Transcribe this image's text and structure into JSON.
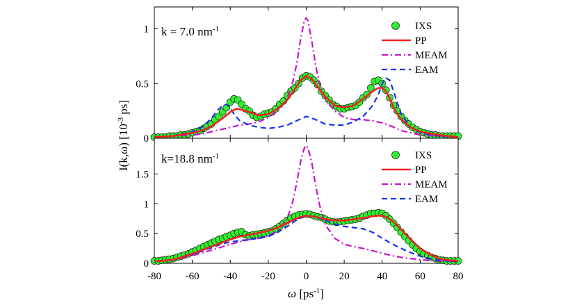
{
  "chart_data": [
    {
      "type": "line",
      "panel_label": "k = 7.0 nm",
      "panel_label_sup": "-1",
      "ylim": [
        0,
        1.2
      ],
      "yticks": [
        "0",
        "0.5",
        "1"
      ],
      "legend_position": "top-right",
      "legend": [
        "IXS",
        "PP",
        "MEAM",
        "EAM"
      ],
      "series": [
        {
          "name": "IXS",
          "style": "markers",
          "color": "#33ee33",
          "x": [
            -80,
            -78,
            -76,
            -74,
            -72,
            -70,
            -68,
            -66,
            -64,
            -62,
            -60,
            -58,
            -56,
            -54,
            -52,
            -50,
            -48,
            -46,
            -44,
            -42,
            -40,
            -38,
            -36,
            -34,
            -32,
            -30,
            -28,
            -26,
            -24,
            -22,
            -20,
            -18,
            -16,
            -14,
            -12,
            -10,
            -8,
            -6,
            -4,
            -2,
            0,
            2,
            4,
            6,
            8,
            10,
            12,
            14,
            16,
            18,
            20,
            22,
            24,
            26,
            28,
            30,
            32,
            34,
            36,
            38,
            40,
            42,
            44,
            46,
            48,
            50,
            52,
            54,
            56,
            58,
            60,
            62,
            64,
            66,
            68,
            70,
            72,
            74,
            76,
            78,
            80
          ],
          "y": [
            0.01,
            0.01,
            0.01,
            0.01,
            0.02,
            0.02,
            0.02,
            0.03,
            0.03,
            0.04,
            0.05,
            0.06,
            0.07,
            0.09,
            0.11,
            0.13,
            0.17,
            0.2,
            0.24,
            0.28,
            0.33,
            0.36,
            0.35,
            0.31,
            0.27,
            0.25,
            0.21,
            0.19,
            0.2,
            0.22,
            0.23,
            0.24,
            0.27,
            0.31,
            0.34,
            0.39,
            0.43,
            0.46,
            0.5,
            0.55,
            0.57,
            0.56,
            0.53,
            0.49,
            0.43,
            0.39,
            0.35,
            0.31,
            0.29,
            0.27,
            0.27,
            0.28,
            0.29,
            0.3,
            0.33,
            0.37,
            0.4,
            0.46,
            0.52,
            0.53,
            0.5,
            0.44,
            0.37,
            0.3,
            0.25,
            0.2,
            0.16,
            0.13,
            0.1,
            0.08,
            0.06,
            0.05,
            0.04,
            0.03,
            0.03,
            0.02,
            0.02,
            0.02,
            0.02,
            0.02,
            0.02
          ]
        },
        {
          "name": "PP",
          "style": "solid",
          "color": "#ee2222",
          "x": [
            -80,
            -70,
            -60,
            -55,
            -50,
            -45,
            -42,
            -40,
            -38,
            -36,
            -34,
            -30,
            -25,
            -20,
            -15,
            -10,
            -6,
            -3,
            0,
            3,
            6,
            10,
            15,
            20,
            25,
            30,
            35,
            38,
            40,
            42,
            44,
            46,
            50,
            55,
            60,
            70,
            80
          ],
          "y": [
            0.01,
            0.02,
            0.05,
            0.07,
            0.11,
            0.17,
            0.21,
            0.24,
            0.26,
            0.27,
            0.26,
            0.24,
            0.21,
            0.22,
            0.27,
            0.35,
            0.45,
            0.53,
            0.57,
            0.54,
            0.47,
            0.38,
            0.3,
            0.28,
            0.3,
            0.36,
            0.43,
            0.46,
            0.46,
            0.43,
            0.36,
            0.28,
            0.17,
            0.1,
            0.06,
            0.03,
            0.01
          ]
        },
        {
          "name": "MEAM",
          "style": "dashdot",
          "color": "#cc11cc",
          "x": [
            -80,
            -70,
            -60,
            -55,
            -50,
            -45,
            -40,
            -35,
            -30,
            -25,
            -20,
            -15,
            -10,
            -7,
            -5,
            -3,
            -1,
            0,
            1,
            3,
            5,
            7,
            10,
            15,
            20,
            25,
            30,
            35,
            40,
            45,
            50,
            55,
            60,
            70,
            80
          ],
          "y": [
            0.01,
            0.02,
            0.03,
            0.04,
            0.06,
            0.08,
            0.1,
            0.12,
            0.13,
            0.15,
            0.19,
            0.25,
            0.37,
            0.52,
            0.68,
            0.9,
            1.08,
            1.1,
            1.07,
            0.88,
            0.66,
            0.5,
            0.36,
            0.25,
            0.19,
            0.17,
            0.17,
            0.16,
            0.14,
            0.11,
            0.07,
            0.05,
            0.03,
            0.02,
            0.01
          ]
        },
        {
          "name": "EAM",
          "style": "dashed",
          "color": "#1133ee",
          "x": [
            -80,
            -70,
            -60,
            -55,
            -50,
            -47,
            -44,
            -42,
            -40,
            -38,
            -35,
            -30,
            -25,
            -20,
            -15,
            -10,
            -5,
            0,
            5,
            10,
            15,
            20,
            25,
            30,
            35,
            38,
            40,
            42,
            44,
            46,
            48,
            50,
            55,
            60,
            70,
            80
          ],
          "y": [
            0.01,
            0.02,
            0.06,
            0.1,
            0.18,
            0.25,
            0.3,
            0.31,
            0.28,
            0.22,
            0.16,
            0.12,
            0.1,
            0.09,
            0.1,
            0.12,
            0.16,
            0.2,
            0.17,
            0.13,
            0.12,
            0.12,
            0.15,
            0.2,
            0.3,
            0.4,
            0.5,
            0.55,
            0.53,
            0.43,
            0.32,
            0.22,
            0.1,
            0.05,
            0.02,
            0.01
          ]
        }
      ]
    },
    {
      "type": "line",
      "panel_label": "k=18.8 nm",
      "panel_label_sup": "-1",
      "ylim": [
        0,
        2.1
      ],
      "yticks": [
        "0",
        "0.5",
        "1",
        "1.5"
      ],
      "legend_position": "top-right",
      "legend": [
        "IXS",
        "PP",
        "MEAM",
        "EAM"
      ],
      "series": [
        {
          "name": "IXS",
          "style": "markers",
          "color": "#33ee33",
          "x": [
            -80,
            -78,
            -76,
            -74,
            -72,
            -70,
            -68,
            -66,
            -64,
            -62,
            -60,
            -58,
            -56,
            -54,
            -52,
            -50,
            -48,
            -46,
            -44,
            -42,
            -40,
            -38,
            -36,
            -34,
            -32,
            -30,
            -28,
            -26,
            -24,
            -22,
            -20,
            -18,
            -16,
            -14,
            -12,
            -10,
            -8,
            -6,
            -4,
            -2,
            0,
            2,
            4,
            6,
            8,
            10,
            12,
            14,
            16,
            18,
            20,
            22,
            24,
            26,
            28,
            30,
            32,
            34,
            36,
            38,
            40,
            42,
            44,
            46,
            48,
            50,
            52,
            54,
            56,
            58,
            60,
            62,
            64,
            66,
            68,
            70,
            72,
            74,
            76,
            78,
            80
          ],
          "y": [
            0.04,
            0.04,
            0.05,
            0.06,
            0.07,
            0.08,
            0.1,
            0.12,
            0.14,
            0.16,
            0.19,
            0.22,
            0.25,
            0.28,
            0.31,
            0.34,
            0.37,
            0.4,
            0.42,
            0.45,
            0.47,
            0.5,
            0.52,
            0.53,
            0.48,
            0.46,
            0.48,
            0.49,
            0.5,
            0.51,
            0.53,
            0.54,
            0.58,
            0.62,
            0.67,
            0.72,
            0.76,
            0.79,
            0.81,
            0.82,
            0.83,
            0.82,
            0.8,
            0.78,
            0.77,
            0.74,
            0.71,
            0.7,
            0.69,
            0.7,
            0.71,
            0.72,
            0.73,
            0.74,
            0.76,
            0.79,
            0.81,
            0.84,
            0.84,
            0.85,
            0.84,
            0.8,
            0.74,
            0.67,
            0.6,
            0.52,
            0.45,
            0.38,
            0.31,
            0.25,
            0.2,
            0.16,
            0.13,
            0.1,
            0.08,
            0.06,
            0.05,
            0.04,
            0.04,
            0.04,
            0.04
          ]
        },
        {
          "name": "PP",
          "style": "solid",
          "color": "#ee2222",
          "x": [
            -80,
            -70,
            -60,
            -50,
            -45,
            -40,
            -35,
            -30,
            -25,
            -20,
            -15,
            -10,
            -5,
            0,
            5,
            10,
            15,
            20,
            25,
            30,
            35,
            38,
            40,
            42,
            45,
            50,
            55,
            60,
            65,
            70,
            75,
            80
          ],
          "y": [
            0.03,
            0.06,
            0.16,
            0.28,
            0.34,
            0.4,
            0.45,
            0.48,
            0.51,
            0.55,
            0.6,
            0.68,
            0.76,
            0.8,
            0.78,
            0.74,
            0.72,
            0.72,
            0.74,
            0.76,
            0.79,
            0.8,
            0.8,
            0.78,
            0.72,
            0.57,
            0.4,
            0.25,
            0.15,
            0.08,
            0.05,
            0.04
          ]
        },
        {
          "name": "MEAM",
          "style": "dashdot",
          "color": "#cc11cc",
          "x": [
            -80,
            -70,
            -60,
            -50,
            -45,
            -40,
            -35,
            -30,
            -25,
            -20,
            -15,
            -10,
            -7,
            -5,
            -3,
            -1,
            0,
            1,
            3,
            5,
            7,
            10,
            15,
            20,
            25,
            30,
            35,
            40,
            45,
            50,
            55,
            60,
            70,
            80
          ],
          "y": [
            0.03,
            0.06,
            0.13,
            0.22,
            0.27,
            0.32,
            0.36,
            0.4,
            0.42,
            0.46,
            0.55,
            0.75,
            1.05,
            1.35,
            1.7,
            1.94,
            1.98,
            1.93,
            1.68,
            1.3,
            0.98,
            0.65,
            0.42,
            0.32,
            0.28,
            0.25,
            0.21,
            0.17,
            0.13,
            0.1,
            0.08,
            0.06,
            0.04,
            0.03
          ]
        },
        {
          "name": "EAM",
          "style": "dashed",
          "color": "#1133ee",
          "x": [
            -80,
            -70,
            -60,
            -50,
            -45,
            -40,
            -35,
            -30,
            -25,
            -20,
            -15,
            -10,
            -5,
            0,
            5,
            10,
            15,
            20,
            25,
            30,
            35,
            40,
            45,
            50,
            55,
            60,
            65,
            70,
            75,
            80
          ],
          "y": [
            0.03,
            0.06,
            0.15,
            0.26,
            0.32,
            0.36,
            0.38,
            0.4,
            0.42,
            0.45,
            0.52,
            0.62,
            0.73,
            0.8,
            0.78,
            0.72,
            0.66,
            0.62,
            0.6,
            0.58,
            0.52,
            0.42,
            0.33,
            0.25,
            0.18,
            0.12,
            0.08,
            0.05,
            0.04,
            0.03
          ]
        }
      ]
    }
  ],
  "axes": {
    "xlim": [
      -80,
      80
    ],
    "xticks": [
      "-80",
      "-60",
      "-40",
      "-20",
      "0",
      "20",
      "40",
      "60",
      "80"
    ],
    "xlabel_symbol": "ω",
    "xlabel_unit": "[ps",
    "xlabel_unit_sup": "-1",
    "xlabel_unit_close": "]",
    "ylabel_main": "I(k,ω)  [10",
    "ylabel_sup": "-3",
    "ylabel_unit": " ps]"
  }
}
